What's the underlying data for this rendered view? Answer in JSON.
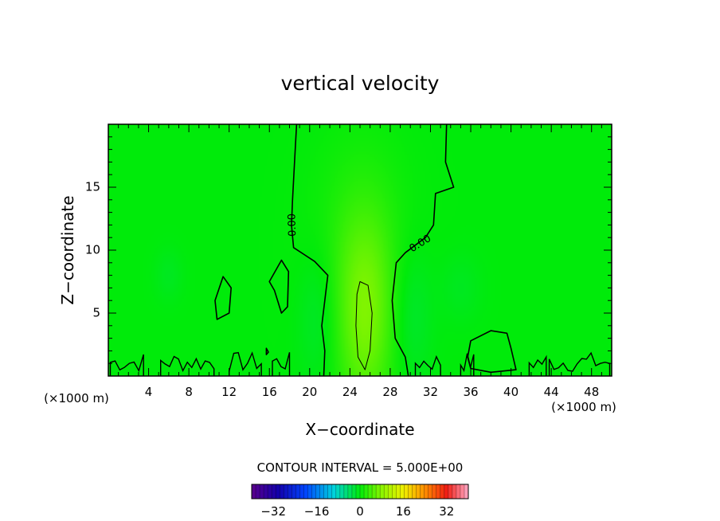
{
  "chart_data": {
    "type": "heatmap",
    "title": "vertical velocity",
    "xlabel": "X−coordinate",
    "ylabel": "Z−coordinate",
    "x_unit_left": "(×1000 m)",
    "x_unit_right": "(×1000 m)",
    "xlim": [
      0,
      50
    ],
    "ylim": [
      0,
      20
    ],
    "x_ticks": [
      4,
      8,
      12,
      16,
      20,
      24,
      28,
      32,
      36,
      40,
      44,
      48
    ],
    "x_tick_labels": [
      "4",
      "8",
      "12",
      "16",
      "20",
      "24",
      "28",
      "32",
      "36",
      "40",
      "44",
      "48"
    ],
    "y_ticks": [
      5,
      10,
      15
    ],
    "y_tick_labels": [
      "5",
      "10",
      "15"
    ],
    "contour_interval_text": "CONTOUR INTERVAL = 5.000E+00",
    "contour_labels": [
      {
        "text": "0.00",
        "x": 18.3,
        "y": 12
      },
      {
        "text": "0.00",
        "x": 31,
        "y": 10.5
      }
    ],
    "colorbar": {
      "min": -40,
      "max": 40,
      "tick_values": [
        -32,
        -16,
        0,
        16,
        32
      ],
      "tick_labels": [
        "−32",
        "−16",
        "0",
        "16",
        "32"
      ]
    },
    "field_blobs": [
      {
        "x": 25.5,
        "y": 4.5,
        "sx": 2.0,
        "sy": 5.5,
        "value": 6
      },
      {
        "x": 25.0,
        "y": 10.0,
        "sx": 3.5,
        "sy": 6.0,
        "value": 2
      },
      {
        "x": 21.0,
        "y": 5.0,
        "sx": 1.5,
        "sy": 4.0,
        "value": -2
      },
      {
        "x": 30.0,
        "y": 5.0,
        "sx": 1.5,
        "sy": 4.0,
        "value": -2
      },
      {
        "x": 6.0,
        "y": 8.0,
        "sx": 1.0,
        "sy": 1.5,
        "value": -1
      },
      {
        "x": 35.0,
        "y": 7.0,
        "sx": 1.5,
        "sy": 2.0,
        "value": -1
      }
    ],
    "contours": [
      {
        "name": "0",
        "closed": false,
        "points": [
          [
            18.7,
            20
          ],
          [
            18.5,
            17
          ],
          [
            18.3,
            14
          ],
          [
            18.2,
            12
          ],
          [
            18.4,
            10.2
          ],
          [
            20.5,
            9.1
          ],
          [
            21.8,
            8
          ],
          [
            21.5,
            6
          ],
          [
            21.2,
            4
          ],
          [
            21.5,
            2
          ],
          [
            21.4,
            0
          ]
        ]
      },
      {
        "name": "0",
        "closed": false,
        "points": [
          [
            33.6,
            20
          ],
          [
            33.5,
            17
          ],
          [
            34.3,
            15
          ],
          [
            32.5,
            14.5
          ],
          [
            32.3,
            12
          ],
          [
            31.5,
            11
          ],
          [
            29.5,
            9.8
          ],
          [
            28.6,
            9
          ],
          [
            28.2,
            6
          ],
          [
            28.5,
            3
          ],
          [
            29.5,
            1.5
          ],
          [
            29.8,
            0
          ]
        ]
      },
      {
        "name": "+5",
        "closed": true,
        "points": [
          [
            25.0,
            7.5
          ],
          [
            25.8,
            7.2
          ],
          [
            26.2,
            5
          ],
          [
            26.0,
            2
          ],
          [
            25.5,
            0.5
          ],
          [
            24.8,
            1.5
          ],
          [
            24.6,
            4
          ],
          [
            24.7,
            6.5
          ]
        ]
      },
      {
        "name": "0",
        "closed": true,
        "points": [
          [
            11.4,
            7.9
          ],
          [
            12.2,
            7
          ],
          [
            12.0,
            5
          ],
          [
            10.8,
            4.5
          ],
          [
            10.6,
            6
          ]
        ]
      },
      {
        "name": "0",
        "closed": true,
        "points": [
          [
            16.0,
            7.5
          ],
          [
            17.2,
            9.2
          ],
          [
            17.9,
            8.3
          ],
          [
            17.8,
            5.5
          ],
          [
            17.2,
            5.0
          ],
          [
            16.5,
            6.8
          ]
        ]
      },
      {
        "name": "0",
        "closed": true,
        "points": [
          [
            36,
            2.8
          ],
          [
            38,
            3.6
          ],
          [
            39.6,
            3.4
          ],
          [
            40.0,
            2.2
          ],
          [
            40.5,
            0.5
          ],
          [
            38,
            0.3
          ],
          [
            36,
            0.6
          ],
          [
            35.7,
            1.5
          ]
        ]
      },
      {
        "name": "0",
        "closed": true,
        "points": [
          [
            15.7,
            2.2
          ],
          [
            15.9,
            1.9
          ],
          [
            15.7,
            1.7
          ]
        ]
      }
    ]
  }
}
